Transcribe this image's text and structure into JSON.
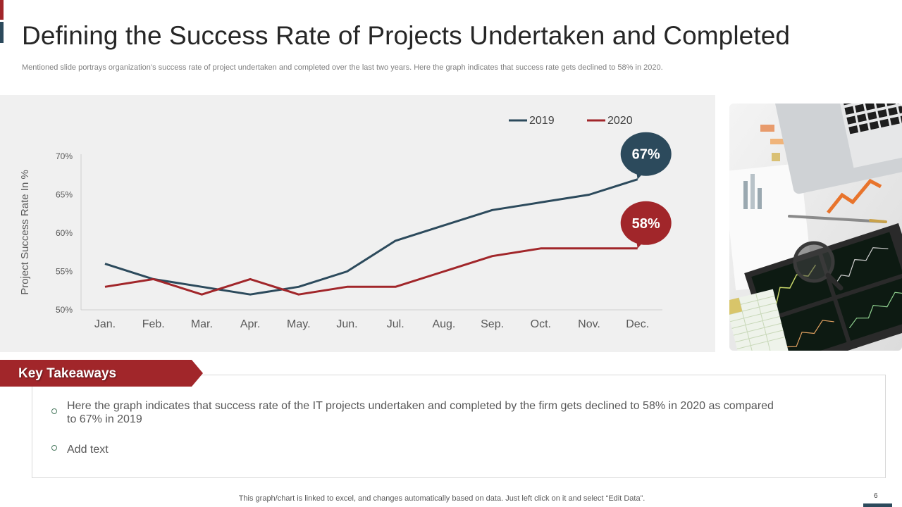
{
  "slide": {
    "title": "Defining the Success Rate of Projects Undertaken and Completed",
    "subtitle": "Mentioned slide portrays organization’s success rate of project undertaken and completed over the last two years. Here the graph indicates that success rate gets declined to 58% in 2020.",
    "page_number": "6",
    "footer_note": "This graph/chart is linked to excel,  and changes automatically based on data. Just left click on it and select “Edit Data”."
  },
  "colors": {
    "accent_red": "#a1262a",
    "accent_blue": "#2c4a5c",
    "series_2019": "#2c4a5c",
    "series_2020": "#a1262a",
    "panel_bg": "#f0f0f0"
  },
  "chart_data": {
    "type": "line",
    "title": "",
    "xlabel": "",
    "ylabel": "Project Success Rate In %",
    "categories": [
      "Jan.",
      "Feb.",
      "Mar.",
      "Apr.",
      "May.",
      "Jun.",
      "Jul.",
      "Aug.",
      "Sep.",
      "Oct.",
      "Nov.",
      "Dec."
    ],
    "yticks": [
      "50%",
      "55%",
      "60%",
      "65%",
      "70%"
    ],
    "ylim": [
      50,
      70
    ],
    "grid": false,
    "legend_position": "top-right",
    "series": [
      {
        "name": "2019",
        "values": [
          56,
          54,
          53,
          52,
          53,
          55,
          59,
          61,
          63,
          64,
          65,
          67
        ]
      },
      {
        "name": "2020",
        "values": [
          53,
          54,
          52,
          54,
          52,
          53,
          53,
          55,
          57,
          58,
          58,
          58
        ]
      }
    ],
    "callouts": [
      {
        "series": "2019",
        "label": "67%"
      },
      {
        "series": "2020",
        "label": "58%"
      }
    ]
  },
  "takeaways": {
    "heading": "Key Takeaways",
    "items": [
      "Here the graph indicates that success rate of the IT projects undertaken and completed by the firm gets declined to 58% in 2020 as compared to 67% in 2019",
      "Add text"
    ]
  }
}
